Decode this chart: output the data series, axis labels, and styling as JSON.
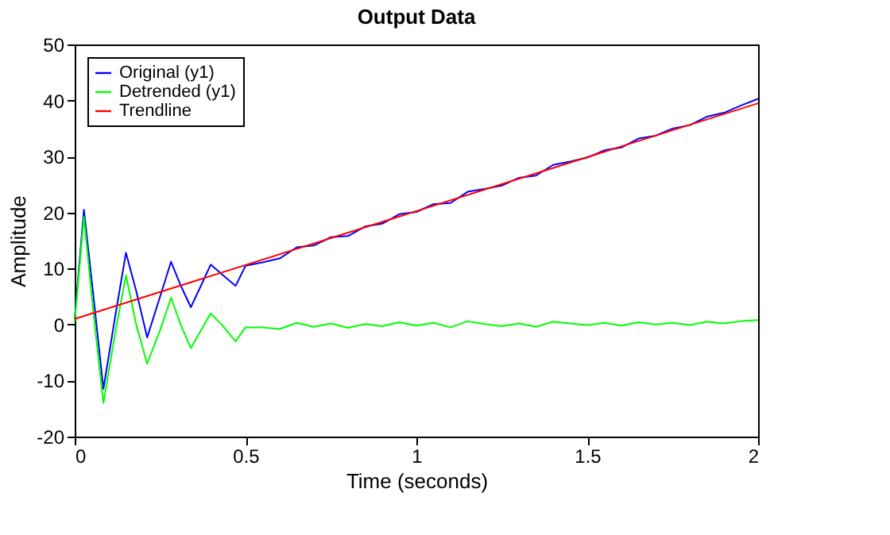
{
  "chart_data": {
    "type": "line",
    "title": "Output Data",
    "xlabel": "Time (seconds)",
    "ylabel": "Amplitude",
    "xlim": [
      0,
      2
    ],
    "ylim": [
      -20,
      50
    ],
    "xticks": [
      0,
      0.5,
      1,
      1.5,
      2
    ],
    "yticks": [
      -20,
      -10,
      0,
      10,
      20,
      30,
      40,
      50
    ],
    "grid": false,
    "legend": "top left",
    "line_style": "solid",
    "marker": "none",
    "series": [
      {
        "name": "Original (y1)",
        "color": "#0000ff",
        "x": [
          0,
          0.027,
          0.055,
          0.084,
          0.12,
          0.15,
          0.18,
          0.212,
          0.25,
          0.282,
          0.31,
          0.34,
          0.37,
          0.398,
          0.43,
          0.471,
          0.5,
          0.55,
          0.6,
          0.65,
          0.7,
          0.75,
          0.8,
          0.85,
          0.9,
          0.95,
          1.0,
          1.05,
          1.1,
          1.15,
          1.2,
          1.25,
          1.3,
          1.35,
          1.4,
          1.45,
          1.5,
          1.55,
          1.6,
          1.65,
          1.7,
          1.75,
          1.8,
          1.85,
          1.9,
          1.95,
          2.0
        ],
        "values": [
          1,
          20.5,
          5,
          -11.5,
          2,
          12.8,
          6,
          -2.3,
          5,
          11.2,
          7,
          3.1,
          7,
          10.7,
          9,
          6.9,
          10.5,
          11.1,
          11.8,
          13.8,
          14.1,
          15.6,
          15.8,
          17.5,
          18,
          19.7,
          20.1,
          21.5,
          21.7,
          23.7,
          24.2,
          24.8,
          26.2,
          26.6,
          28.5,
          29.1,
          29.8,
          31.1,
          31.6,
          33.2,
          33.7,
          35,
          35.6,
          37.1,
          37.8,
          39.1,
          40.3
        ]
      },
      {
        "name": "Detrended (y1)",
        "color": "#00ff00",
        "x": [
          0,
          0.027,
          0.055,
          0.084,
          0.12,
          0.15,
          0.18,
          0.212,
          0.25,
          0.282,
          0.31,
          0.34,
          0.37,
          0.398,
          0.43,
          0.471,
          0.5,
          0.55,
          0.6,
          0.65,
          0.7,
          0.75,
          0.8,
          0.85,
          0.9,
          0.95,
          1.0,
          1.05,
          1.1,
          1.15,
          1.2,
          1.25,
          1.3,
          1.35,
          1.4,
          1.45,
          1.5,
          1.55,
          1.6,
          1.65,
          1.7,
          1.75,
          1.8,
          1.85,
          1.9,
          1.95,
          2.0
        ],
        "values": [
          0.5,
          19.2,
          2,
          -14,
          -1,
          8.8,
          0,
          -7,
          -1,
          4.8,
          0,
          -4.2,
          -1,
          2,
          0,
          -3,
          -0.5,
          -0.5,
          -0.8,
          0.3,
          -0.4,
          0.2,
          -0.6,
          0.1,
          -0.3,
          0.4,
          -0.2,
          0.3,
          -0.5,
          0.6,
          0.1,
          -0.3,
          0.2,
          -0.4,
          0.5,
          0.2,
          -0.1,
          0.3,
          -0.2,
          0.4,
          0,
          0.3,
          -0.1,
          0.5,
          0.2,
          0.6,
          0.8
        ]
      },
      {
        "name": "Trendline",
        "color": "#ff0000",
        "type": "line",
        "x": [
          0,
          2
        ],
        "values": [
          1,
          39.5
        ]
      }
    ]
  }
}
